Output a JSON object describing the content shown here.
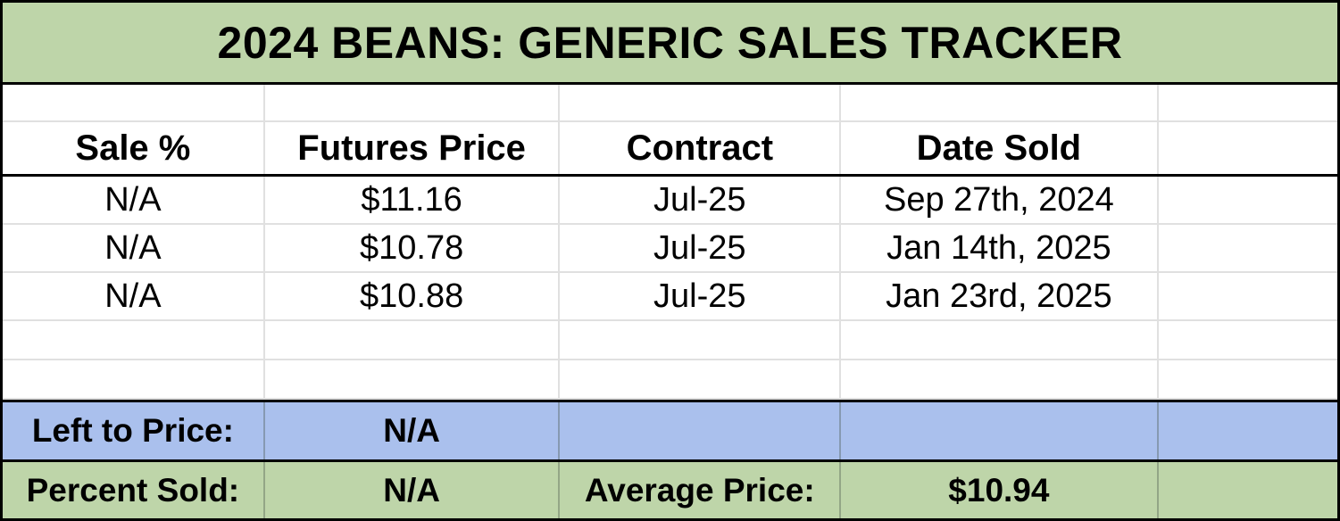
{
  "chart_data": {
    "type": "table",
    "title": "2024 BEANS: GENERIC SALES TRACKER",
    "columns": [
      "Sale %",
      "Futures Price",
      "Contract",
      "Date Sold",
      ""
    ],
    "rows": [
      [
        "N/A",
        "$11.16",
        "Jul-25",
        "Sep 27th, 2024",
        ""
      ],
      [
        "N/A",
        "$10.78",
        "Jul-25",
        "Jan 14th, 2025",
        ""
      ],
      [
        "N/A",
        "$10.88",
        "Jul-25",
        "Jan 23rd, 2025",
        ""
      ],
      [
        "",
        "",
        "",
        "",
        ""
      ],
      [
        "",
        "",
        "",
        "",
        ""
      ]
    ],
    "summary_rows": [
      {
        "style": "blue",
        "cells": [
          "Left to Price:",
          "N/A",
          "",
          "",
          ""
        ]
      },
      {
        "style": "green",
        "cells": [
          "Percent Sold:",
          "N/A",
          "Average Price:",
          "$10.94",
          ""
        ]
      }
    ],
    "layout_hints": {
      "grid": "on",
      "title_band_color": "#bed5a9",
      "summary_band_colors": [
        "#aac0ed",
        "#bed5a9"
      ]
    }
  },
  "colors": {
    "header_green": "#bed5a9",
    "summary_blue": "#aac0ed",
    "gridline_gray": "#e0e0e0",
    "border_black": "#000000",
    "text_black": "#000000",
    "background_white": "#ffffff"
  }
}
